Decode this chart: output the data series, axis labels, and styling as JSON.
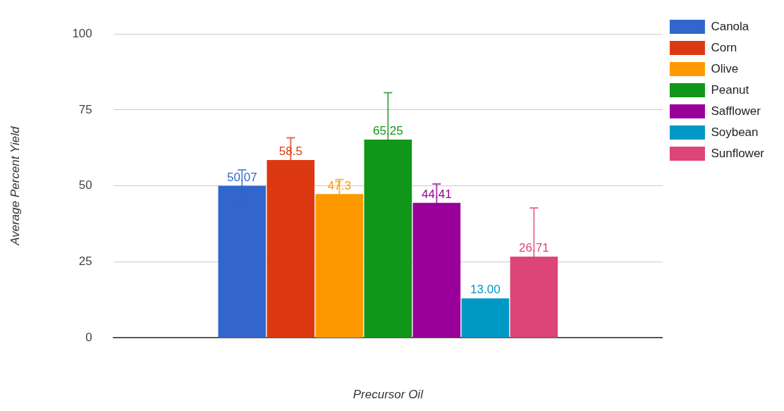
{
  "chart_data": {
    "type": "bar",
    "xlabel": "Precursor Oil",
    "ylabel": "Average Percent Yield",
    "categories": [
      null
    ],
    "series": [
      {
        "name": "Canola",
        "color": "#3366cc",
        "values": [
          50.07
        ],
        "errors": [
          5.2
        ],
        "value_labels": [
          "50.07"
        ]
      },
      {
        "name": "Corn",
        "color": "#dc3912",
        "values": [
          58.5
        ],
        "errors": [
          7.3
        ],
        "value_labels": [
          "58.5"
        ]
      },
      {
        "name": "Olive",
        "color": "#ff9900",
        "values": [
          47.3
        ],
        "errors": [
          4.8
        ],
        "value_labels": [
          "47.3"
        ]
      },
      {
        "name": "Peanut",
        "color": "#109618",
        "values": [
          65.25
        ],
        "errors": [
          15.4
        ],
        "value_labels": [
          "65.25"
        ]
      },
      {
        "name": "Safflower",
        "color": "#990099",
        "values": [
          44.41
        ],
        "errors": [
          6.2
        ],
        "value_labels": [
          "44.41"
        ]
      },
      {
        "name": "Soybean",
        "color": "#0099c6",
        "values": [
          13.0
        ],
        "errors": [
          null
        ],
        "value_labels": [
          "13.00"
        ]
      },
      {
        "name": "Sunflower",
        "color": "#dd4477",
        "values": [
          26.71
        ],
        "errors": [
          16.0
        ],
        "value_labels": [
          "26.71"
        ]
      }
    ],
    "ylim": [
      0,
      100
    ],
    "yticks": [
      0,
      25,
      50,
      75,
      100
    ],
    "grid": "y",
    "legend": "top right"
  }
}
